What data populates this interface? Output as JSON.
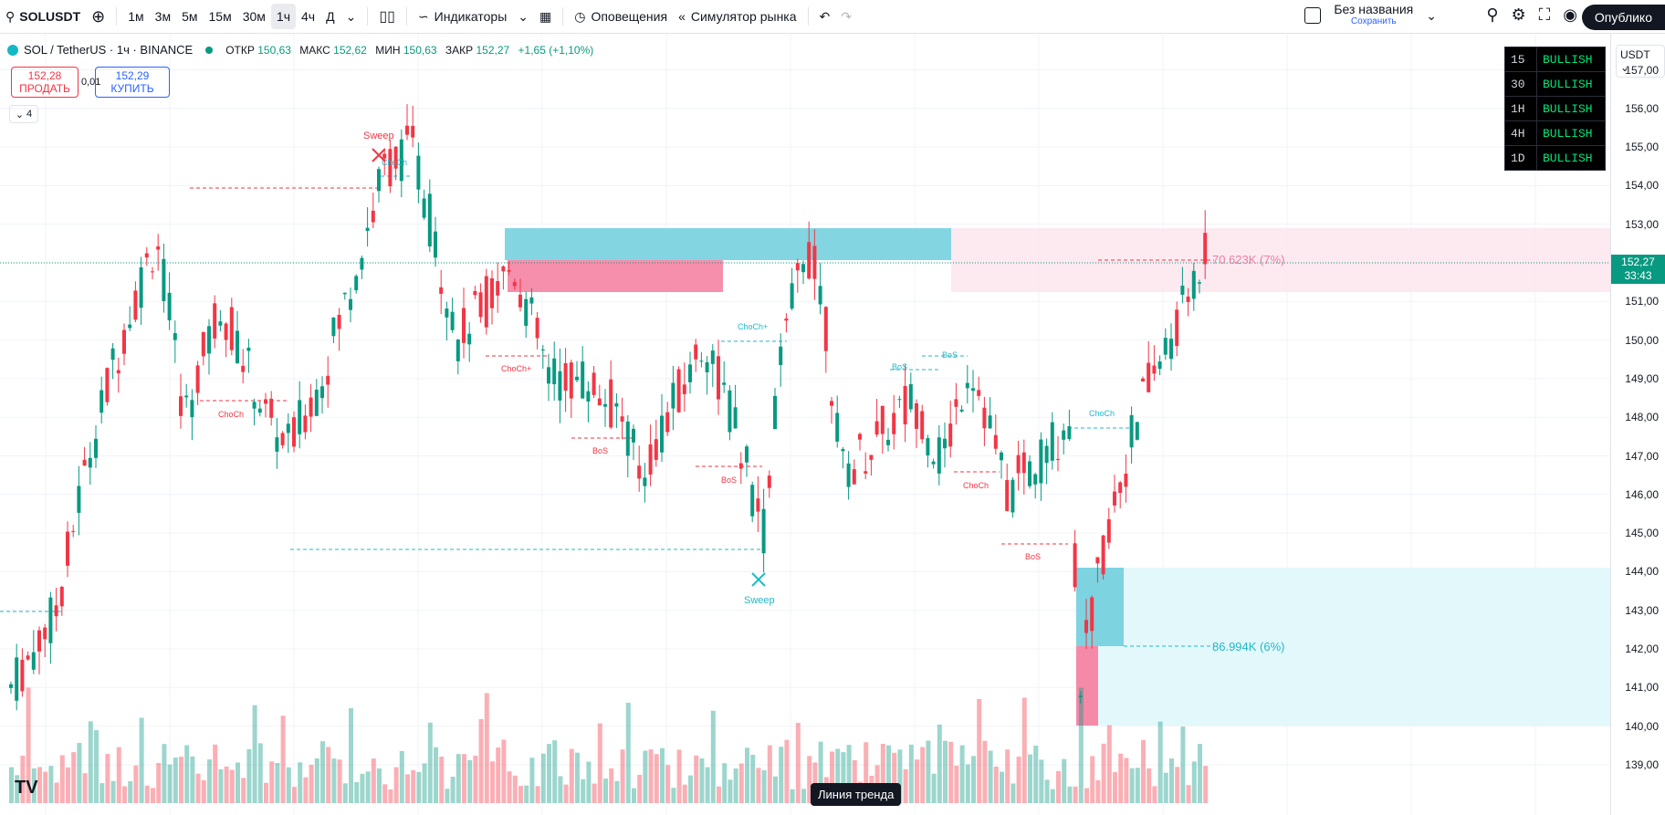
{
  "toolbar": {
    "symbol": "SOLUSDT",
    "intervals": [
      "1м",
      "3м",
      "5м",
      "15м",
      "30м",
      "1ч",
      "4ч",
      "Д"
    ],
    "active_interval": "1ч",
    "indicators_label": "Индикаторы",
    "alerts_label": "Оповещения",
    "replay_label": "Симулятор рынка",
    "layout_name": "Без названия",
    "layout_save": "Сохранить",
    "publish_label": "Опублико"
  },
  "legend": {
    "title": "SOL / TetherUS · 1ч · BINANCE",
    "open_label": "ОТКР",
    "open": "150,63",
    "high_label": "МАКС",
    "high": "152,62",
    "low_label": "МИН",
    "low": "150,63",
    "close_label": "ЗАКР",
    "close": "152,27",
    "change": "+1,65 (+1,10%)"
  },
  "trade": {
    "sell_price": "152,28",
    "sell_label": "ПРОДАТЬ",
    "spread": "0,01",
    "buy_price": "152,29",
    "buy_label": "КУПИТЬ"
  },
  "indicators_count": "4",
  "currency": "USDT",
  "price_scale": [
    "157,00",
    "156,00",
    "155,00",
    "154,00",
    "153,00",
    "152,00",
    "151,00",
    "150,00",
    "149,00",
    "148,00",
    "147,00",
    "146,00",
    "145,00",
    "144,00",
    "143,00",
    "142,00",
    "141,00",
    "140,00",
    "139,00"
  ],
  "current_price": {
    "price": "152,27",
    "countdown": "33:43"
  },
  "bull_table": [
    {
      "tf": "15",
      "state": "BULLISH"
    },
    {
      "tf": "30",
      "state": "BULLISH"
    },
    {
      "tf": "1H",
      "state": "BULLISH"
    },
    {
      "tf": "4H",
      "state": "BULLISH"
    },
    {
      "tf": "1D",
      "state": "BULLISH"
    }
  ],
  "annotations": {
    "sweep_top": "Sweep",
    "sweep_bottom": "Sweep",
    "choch": "ChoCh",
    "choch_plus": "ChoCh+",
    "bos": "BoS",
    "upper_volume": "70.623K (7%)",
    "lower_volume": "86.994K (6%)"
  },
  "tooltip": "Линия тренда",
  "colors": {
    "up": "#089981",
    "down": "#f23645",
    "bull_zone": "#7dd3e0",
    "bear_zone": "#f589a8"
  }
}
